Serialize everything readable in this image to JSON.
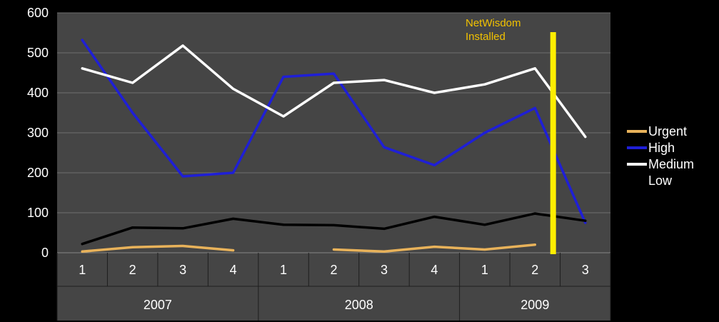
{
  "chart_data": {
    "type": "line",
    "title": "",
    "xlabel": "",
    "ylabel": "",
    "ylim": [
      0,
      600
    ],
    "yticks": [
      "0",
      "100",
      "200",
      "300",
      "400",
      "500",
      "600"
    ],
    "grid": "horizontal",
    "legend": "right",
    "quarters": [
      "1",
      "2",
      "3",
      "4",
      "1",
      "2",
      "3",
      "4",
      "1",
      "2",
      "3"
    ],
    "years": [
      {
        "label": "2007",
        "span": 4
      },
      {
        "label": "2008",
        "span": 4
      },
      {
        "label": "2009",
        "span": 3
      }
    ],
    "series": [
      {
        "name": "Urgent",
        "color": "#e8b25a",
        "values": [
          3,
          14,
          17,
          6,
          null,
          8,
          3,
          15,
          8,
          20,
          null
        ]
      },
      {
        "name": "High",
        "color": "#1f1fd6",
        "values": [
          532,
          350,
          191,
          200,
          440,
          448,
          264,
          219,
          300,
          362,
          75
        ]
      },
      {
        "name": "Medium",
        "color": "#ffffff",
        "values": [
          461,
          425,
          518,
          410,
          341,
          425,
          432,
          400,
          421,
          461,
          290
        ]
      },
      {
        "name": "Low",
        "color": "#000000",
        "values": [
          22,
          63,
          61,
          85,
          70,
          69,
          60,
          90,
          70,
          98,
          80
        ]
      }
    ],
    "annotation": {
      "text_line1": "NetWisdom",
      "text_line2": "Installed",
      "at_x": 9.36,
      "color": "#ffee00",
      "text_color": "#f2c200"
    }
  }
}
